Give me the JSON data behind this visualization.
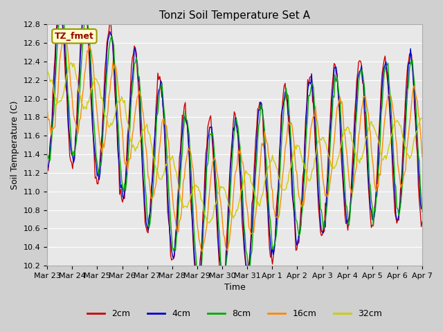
{
  "title": "Tonzi Soil Temperature Set A",
  "xlabel": "Time",
  "ylabel": "Soil Temperature (C)",
  "ylim": [
    10.2,
    12.8
  ],
  "yticks": [
    10.2,
    10.4,
    10.6,
    10.8,
    11.0,
    11.2,
    11.4,
    11.6,
    11.8,
    12.0,
    12.2,
    12.4,
    12.6,
    12.8
  ],
  "xtick_labels": [
    "Mar 23",
    "Mar 24",
    "Mar 25",
    "Mar 26",
    "Mar 27",
    "Mar 28",
    "Mar 29",
    "Mar 30",
    "Mar 31",
    "Apr 1",
    "Apr 2",
    "Apr 3",
    "Apr 4",
    "Apr 5",
    "Apr 6",
    "Apr 7"
  ],
  "line_colors": [
    "#cc0000",
    "#0000cc",
    "#00aa00",
    "#ff8800",
    "#cccc00"
  ],
  "line_labels": [
    "2cm",
    "4cm",
    "8cm",
    "16cm",
    "32cm"
  ],
  "legend_label": "TZ_fmet",
  "n_points": 384,
  "days": 15,
  "amplitude_2cm": 0.9,
  "amplitude_4cm": 0.85,
  "amplitude_8cm": 0.8,
  "amplitude_16cm": 0.5,
  "amplitude_32cm": 0.2,
  "phase_2cm": 0.0,
  "phase_4cm": 0.15,
  "phase_8cm": 0.4,
  "phase_16cm": 1.2,
  "phase_32cm": 3.0
}
